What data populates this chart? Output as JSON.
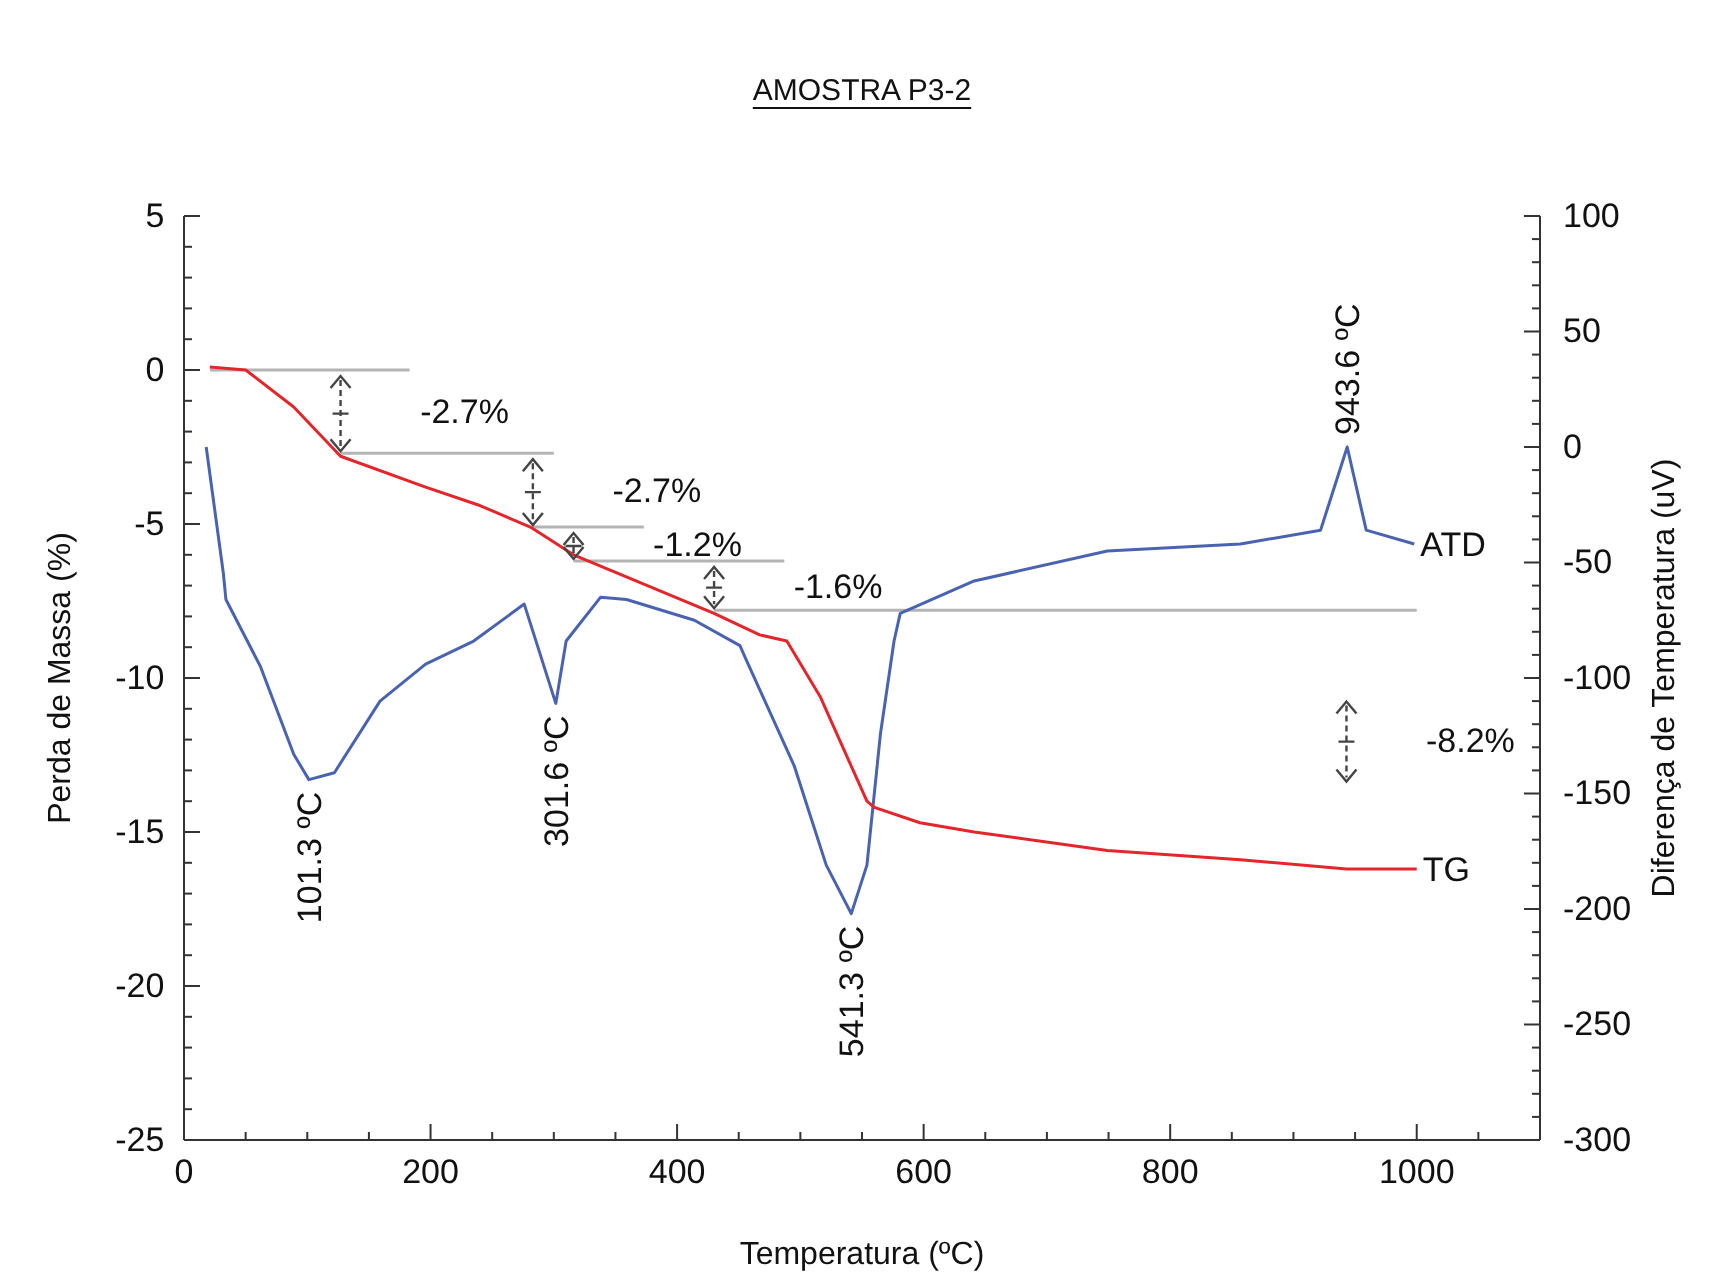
{
  "chart_data": {
    "type": "line",
    "title": "AMOSTRA P3-2",
    "xlabel": "Temperatura (ºC)",
    "ylabel": "Perda de Massa (%)",
    "y2label": "Diferença de Temperatura (uV)",
    "xlim": [
      0,
      1100
    ],
    "xticks": [
      0,
      {
        "value": 50,
        "label": null
      },
      200,
      {
        "value": 100,
        "label": null
      },
      {
        "value": 150,
        "label": null
      },
      {
        "value": 250,
        "label": null
      },
      {
        "value": 300,
        "label": null
      },
      {
        "value": 350,
        "label": null
      },
      400,
      {
        "value": 450,
        "label": null
      },
      {
        "value": 500,
        "label": null
      },
      {
        "value": 550,
        "label": null
      },
      600,
      {
        "value": 650,
        "label": null
      },
      {
        "value": 700,
        "label": null
      },
      {
        "value": 750,
        "label": null
      },
      800,
      {
        "value": 850,
        "label": null
      },
      {
        "value": 900,
        "label": null
      },
      {
        "value": 950,
        "label": null
      },
      1000,
      {
        "value": 1050,
        "label": null
      },
      {
        "value": 1100,
        "label": null
      }
    ],
    "ylim": [
      -25,
      5
    ],
    "yticks": [
      -25,
      -20,
      -15,
      -10,
      -5,
      0,
      5,
      {
        "value": -24,
        "label": null
      },
      {
        "value": -23,
        "label": null
      },
      {
        "value": -22,
        "label": null
      },
      {
        "value": -21,
        "label": null
      },
      {
        "value": -19,
        "label": null
      },
      {
        "value": -18,
        "label": null
      },
      {
        "value": -17,
        "label": null
      },
      {
        "value": -16,
        "label": null
      },
      {
        "value": -14,
        "label": null
      },
      {
        "value": -13,
        "label": null
      },
      {
        "value": -12,
        "label": null
      },
      {
        "value": -11,
        "label": null
      },
      {
        "value": -9,
        "label": null
      },
      {
        "value": -8,
        "label": null
      },
      {
        "value": -7,
        "label": null
      },
      {
        "value": -6,
        "label": null
      },
      {
        "value": -4,
        "label": null
      },
      {
        "value": -3,
        "label": null
      },
      {
        "value": -2,
        "label": null
      },
      {
        "value": -1,
        "label": null
      },
      {
        "value": 1,
        "label": null
      },
      {
        "value": 2,
        "label": null
      },
      {
        "value": 3,
        "label": null
      },
      {
        "value": 4,
        "label": null
      }
    ],
    "y2lim": [
      -300,
      100
    ],
    "y2ticks": [
      -300,
      -250,
      -200,
      -150,
      -100,
      -50,
      0,
      50,
      100,
      {
        "value": -290,
        "label": null
      },
      {
        "value": -280,
        "label": null
      },
      {
        "value": -270,
        "label": null
      },
      {
        "value": -260,
        "label": null
      },
      {
        "value": -240,
        "label": null
      },
      {
        "value": -230,
        "label": null
      },
      {
        "value": -220,
        "label": null
      },
      {
        "value": -210,
        "label": null
      },
      {
        "value": -190,
        "label": null
      },
      {
        "value": -180,
        "label": null
      },
      {
        "value": -170,
        "label": null
      },
      {
        "value": -160,
        "label": null
      },
      {
        "value": -140,
        "label": null
      },
      {
        "value": -130,
        "label": null
      },
      {
        "value": -120,
        "label": null
      },
      {
        "value": -110,
        "label": null
      },
      {
        "value": -90,
        "label": null
      },
      {
        "value": -80,
        "label": null
      },
      {
        "value": -70,
        "label": null
      },
      {
        "value": -60,
        "label": null
      },
      {
        "value": -40,
        "label": null
      },
      {
        "value": -30,
        "label": null
      },
      {
        "value": -20,
        "label": null
      },
      {
        "value": -10,
        "label": null
      },
      {
        "value": 10,
        "label": null
      },
      {
        "value": 20,
        "label": null
      },
      {
        "value": 30,
        "label": null
      },
      {
        "value": 40,
        "label": null
      },
      {
        "value": 60,
        "label": null
      },
      {
        "value": 70,
        "label": null
      },
      {
        "value": 80,
        "label": null
      },
      {
        "value": 90,
        "label": null
      }
    ],
    "series": [
      {
        "color": "#b4b4b4",
        "x": [
          21,
          183
        ],
        "values": [
          0,
          0
        ]
      },
      {
        "color": "#b4b4b4",
        "x": [
          127,
          300
        ],
        "values": [
          -2.7,
          -2.7
        ]
      },
      {
        "color": "#b4b4b4",
        "x": [
          283,
          373
        ],
        "values": [
          -5.1,
          -5.1
        ]
      },
      {
        "color": "#b4b4b4",
        "x": [
          316,
          487
        ],
        "values": [
          -6.2,
          -6.2
        ]
      },
      {
        "color": "#b4b4b4",
        "x": [
          430,
          1000
        ],
        "values": [
          -7.8,
          -7.8
        ]
      },
      {
        "name": "ATD",
        "axis": "y2",
        "color": "#4a63b0",
        "x": [
          18,
          32,
          34,
          62,
          89,
          101.3,
          122,
          159,
          196,
          235,
          276,
          301.6,
          310,
          338,
          359,
          414,
          451,
          456,
          495,
          521,
          541.3,
          554,
          565,
          576,
          581,
          641,
          749,
          857,
          922,
          943.6,
          959,
          998
        ],
        "values": [
          0,
          -55,
          -66,
          -95,
          -133,
          -144,
          -141,
          -110,
          -94,
          -84,
          -68,
          -111,
          -84,
          -65,
          -66,
          -75,
          -86,
          -92,
          -138,
          -181,
          -202,
          -181,
          -124,
          -84,
          -72,
          -58,
          -45,
          -42,
          -36,
          0,
          -36,
          -42
        ]
      },
      {
        "name": "TG",
        "color": "#e3262b",
        "x": [
          21,
          50,
          89,
          127,
          196,
          240,
          281,
          316,
          430,
          467,
          489,
          516,
          554,
          560,
          597,
          641,
          749,
          857,
          943,
          1000
        ],
        "values": [
          0.1,
          0,
          -1.2,
          -2.8,
          -3.8,
          -4.4,
          -5.1,
          -6.0,
          -7.9,
          -8.6,
          -8.8,
          -10.6,
          -14.0,
          -14.2,
          -14.7,
          -15.0,
          -15.6,
          -15.9,
          -16.2,
          -16.2
        ]
      }
    ],
    "annotations": [
      "-2.7%",
      "-2.7%",
      "-1.2%",
      "-1.6%",
      "-8.2%",
      "101.3 ºC",
      "301.6 ºC",
      "541.3 ºC",
      "943.6 ºC"
    ]
  }
}
